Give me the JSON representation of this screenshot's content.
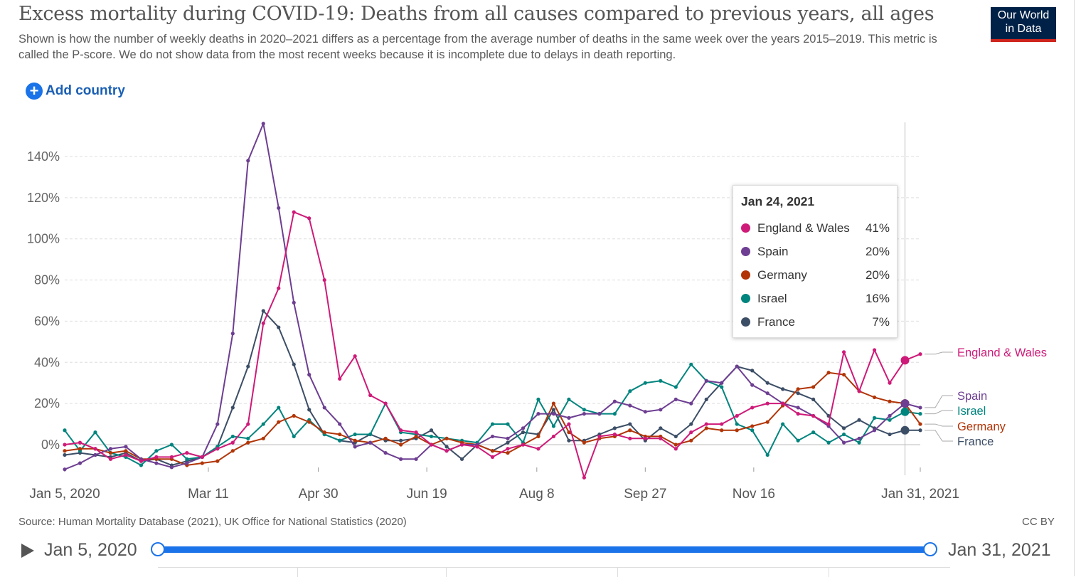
{
  "header": {
    "title": "Excess mortality during COVID-19: Deaths from all causes compared to previous years, all ages",
    "subtitle": "Shown is how the number of weekly deaths in 2020–2021 differs as a percentage from the average number of deaths in the same week over the years 2015–2019. This metric is called the P-score. We do not show data from the most recent weeks because it is incomplete due to delays in death reporting.",
    "logo_line1": "Our World",
    "logo_line2": "in Data",
    "add_country_label": "Add country"
  },
  "tooltip": {
    "date": "Jan 24, 2021",
    "rows": [
      {
        "name": "England & Wales",
        "value": "41%",
        "color": "#ce1a78"
      },
      {
        "name": "Spain",
        "value": "20%",
        "color": "#6d3e91"
      },
      {
        "name": "Germany",
        "value": "20%",
        "color": "#b13507"
      },
      {
        "name": "Israel",
        "value": "16%",
        "color": "#00847e"
      },
      {
        "name": "France",
        "value": "7%",
        "color": "#3c4e66"
      }
    ]
  },
  "footer": {
    "source": "Source: Human Mortality Database (2021), UK Office for National Statistics (2020)",
    "license": "CC BY"
  },
  "timeline": {
    "start_label": "Jan 5, 2020",
    "end_label": "Jan 31, 2021"
  },
  "chart_data": {
    "type": "line",
    "title": "Excess mortality during COVID-19: Deaths from all causes compared to previous years, all ages",
    "ylim": [
      -15,
      155
    ],
    "y_ticks": [
      0,
      20,
      40,
      60,
      80,
      100,
      120,
      140
    ],
    "y_tick_labels": [
      "0%",
      "20%",
      "40%",
      "60%",
      "80%",
      "100%",
      "120%",
      "140%"
    ],
    "x_tick_labels": [
      "Jan 5, 2020",
      "Mar 11",
      "Apr 30",
      "Jun 19",
      "Aug 8",
      "Sep 27",
      "Nov 16",
      "Jan 31, 2021"
    ],
    "x_tick_weeks": [
      0,
      9.4,
      16.6,
      23.7,
      30.9,
      38.0,
      45.1,
      56.0
    ],
    "x_range_weeks": [
      0,
      56
    ],
    "hover_week": 55,
    "hover_label": "Jan 24, 2021",
    "grid": "horizontal dashed",
    "legend": "right, inline labels",
    "series": [
      {
        "name": "England & Wales",
        "color": "#ce1a78",
        "label": "England & Wales",
        "values": [
          0,
          1,
          -2,
          -7,
          -5,
          -8,
          -6,
          -6,
          -4,
          -6,
          -2,
          1,
          10,
          59,
          76,
          113,
          110,
          80,
          32,
          43,
          24,
          20,
          7,
          6,
          0,
          -3,
          0,
          -1,
          -6,
          -2,
          0,
          -2,
          4,
          10,
          -16,
          4,
          5,
          3,
          3,
          3,
          -2,
          6,
          10,
          10,
          14,
          18,
          20,
          20,
          15,
          14,
          10,
          45,
          26,
          46,
          30,
          41,
          44
        ]
      },
      {
        "name": "Spain",
        "color": "#6d3e91",
        "label": "Spain",
        "values": [
          -12,
          -9,
          -5,
          -2,
          -1,
          -7,
          -9,
          -11,
          -9,
          -6,
          10,
          54,
          138,
          156,
          115,
          69,
          34,
          18,
          10,
          -1,
          1,
          -4,
          -7,
          -7,
          0,
          -3,
          0,
          0,
          4,
          3,
          8,
          15,
          15,
          13,
          15,
          15,
          21,
          19,
          16,
          17,
          22,
          20,
          31,
          30,
          38,
          29,
          25,
          20,
          18,
          14,
          9,
          1,
          3,
          7,
          14,
          20,
          18
        ]
      },
      {
        "name": "Germany",
        "color": "#b13507",
        "label": "Germany",
        "values": [
          -3,
          -2,
          -2,
          -4,
          -3,
          -7,
          -7,
          -7,
          -10,
          -9,
          -8,
          -3,
          1,
          3,
          11,
          14,
          11,
          6,
          5,
          2,
          1,
          3,
          0,
          4,
          0,
          3,
          1,
          0,
          -3,
          -4,
          0,
          4,
          20,
          6,
          1,
          3,
          4,
          7,
          4,
          4,
          0,
          2,
          8,
          7,
          7,
          9,
          11,
          19,
          27,
          28,
          35,
          34,
          26,
          23,
          21,
          20,
          10
        ]
      },
      {
        "name": "Israel",
        "color": "#00847e",
        "label": "Israel",
        "values": [
          7,
          -3,
          6,
          -4,
          -6,
          -10,
          -3,
          0,
          -7,
          -6,
          -1,
          4,
          3,
          10,
          18,
          4,
          12,
          5,
          2,
          5,
          5,
          20,
          6,
          5,
          4,
          3,
          2,
          1,
          10,
          10,
          1,
          22,
          9,
          22,
          17,
          15,
          15,
          26,
          30,
          31,
          28,
          39,
          31,
          28,
          10,
          7,
          -5,
          10,
          2,
          6,
          1,
          5,
          1,
          13,
          12,
          16,
          15
        ]
      },
      {
        "name": "France",
        "color": "#3c4e66",
        "label": "France",
        "values": [
          -5,
          -4,
          -5,
          -6,
          -4,
          -8,
          -7,
          -10,
          -8,
          -6,
          -1,
          18,
          38,
          65,
          57,
          39,
          17,
          5,
          2,
          1,
          5,
          2,
          2,
          3,
          7,
          -1,
          -7,
          0,
          -3,
          1,
          6,
          5,
          17,
          2,
          2,
          5,
          8,
          10,
          2,
          8,
          4,
          10,
          22,
          30,
          38,
          36,
          30,
          27,
          25,
          22,
          14,
          8,
          12,
          8,
          5,
          7,
          7
        ]
      }
    ]
  }
}
